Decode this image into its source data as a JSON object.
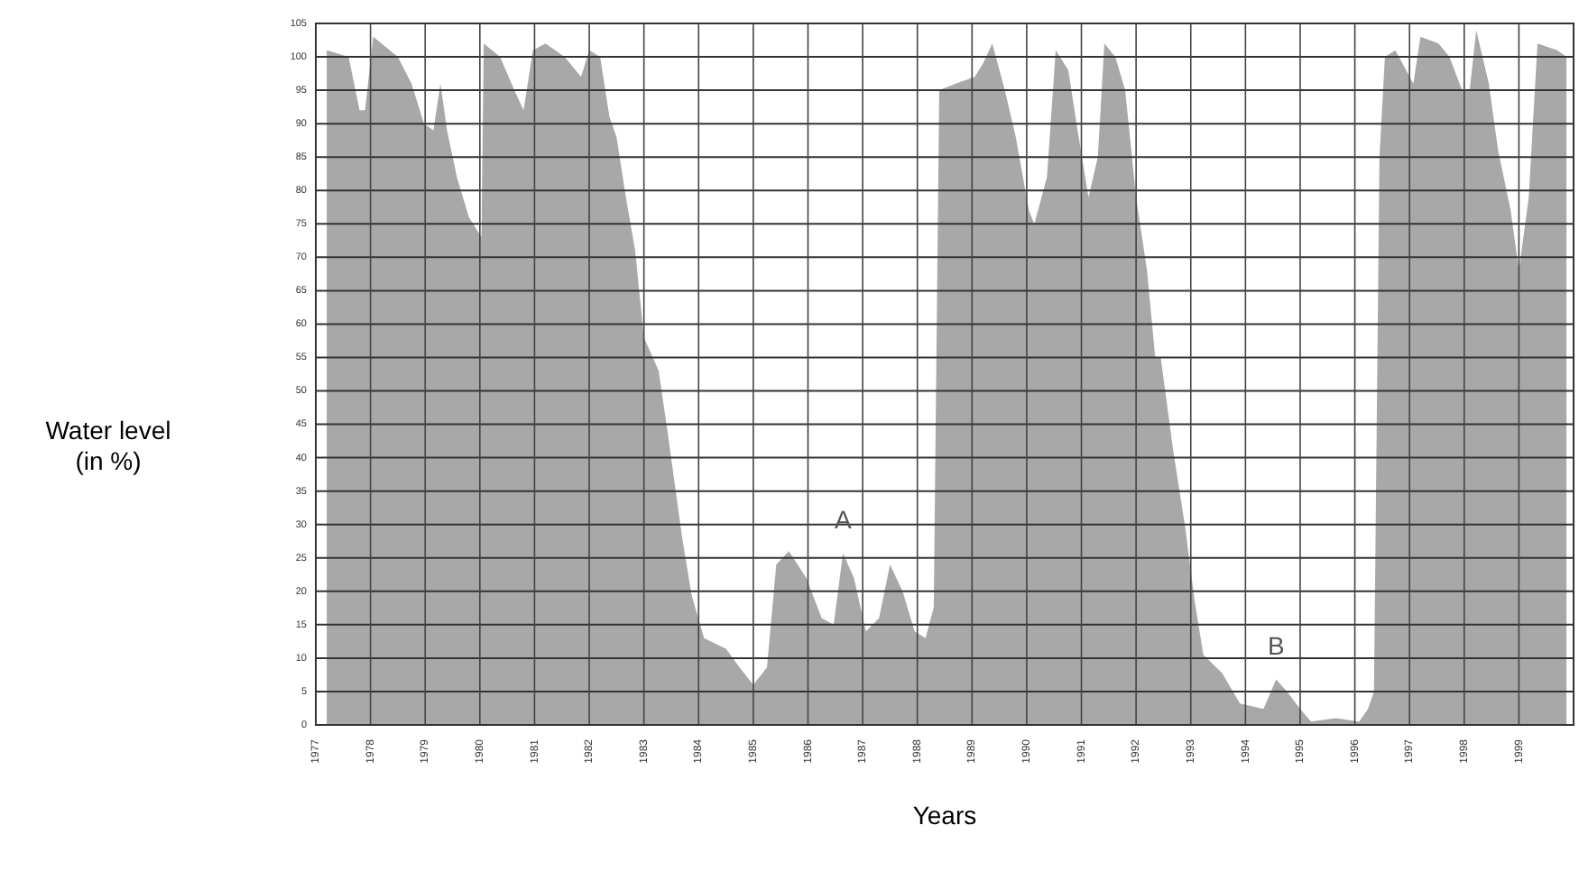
{
  "chart_data": {
    "type": "area",
    "xlabel": "Years",
    "ylabel": "Water level (in %)",
    "xlim": [
      1977,
      2000
    ],
    "xticks": [
      1977,
      1978,
      1979,
      1980,
      1981,
      1982,
      1983,
      1984,
      1985,
      1986,
      1987,
      1988,
      1989,
      1990,
      1991,
      1992,
      1993,
      1994,
      1995,
      1996,
      1997,
      1998,
      1999
    ],
    "ylim": [
      0,
      105
    ],
    "yticks": [
      0,
      5,
      10,
      15,
      20,
      25,
      30,
      35,
      40,
      45,
      50,
      55,
      60,
      65,
      70,
      75,
      80,
      85,
      90,
      95,
      100,
      105
    ],
    "grid": true,
    "series": [
      {
        "color": "#a8a8a8",
        "x": [
          1977.2,
          1977.6,
          1977.8,
          1977.9,
          1978.05,
          1978.5,
          1978.75,
          1978.98,
          1979.15,
          1979.28,
          1979.4,
          1979.58,
          1979.8,
          1980.03,
          1980.07,
          1980.37,
          1980.63,
          1980.8,
          1980.97,
          1981.2,
          1981.55,
          1981.85,
          1982.0,
          1982.2,
          1982.37,
          1982.5,
          1982.67,
          1982.84,
          1983.0,
          1983.27,
          1983.43,
          1983.7,
          1983.87,
          1984.1,
          1984.5,
          1984.75,
          1985.0,
          1985.25,
          1985.42,
          1985.65,
          1985.97,
          1986.25,
          1986.47,
          1986.64,
          1986.84,
          1987.06,
          1987.3,
          1987.5,
          1987.73,
          1987.95,
          1988.15,
          1988.3,
          1988.4,
          1988.7,
          1989.05,
          1989.2,
          1989.37,
          1989.6,
          1989.8,
          1990.04,
          1990.14,
          1990.37,
          1990.53,
          1990.76,
          1990.93,
          1991.13,
          1991.3,
          1991.42,
          1991.62,
          1991.8,
          1992.0,
          1992.2,
          1992.35,
          1992.45,
          1992.68,
          1992.9,
          1993.07,
          1993.23,
          1993.57,
          1993.9,
          1994.33,
          1994.56,
          1994.76,
          1995.0,
          1995.2,
          1995.65,
          1996.08,
          1996.24,
          1996.35,
          1996.45,
          1996.55,
          1996.74,
          1997.07,
          1997.2,
          1997.53,
          1997.73,
          1997.96,
          1998.1,
          1998.22,
          1998.45,
          1998.62,
          1998.85,
          1999.0,
          1999.18,
          1999.34,
          1999.7,
          1999.87
        ],
        "values": [
          101,
          100,
          92,
          92,
          103,
          100,
          96,
          90,
          89,
          96,
          89,
          82,
          76,
          73,
          102,
          100,
          95,
          92,
          101,
          102,
          100,
          97,
          101,
          100,
          91,
          88,
          79,
          71,
          58,
          53,
          44,
          28,
          19.5,
          13,
          11.4,
          8.6,
          6,
          8.6,
          24,
          26,
          22,
          16,
          15,
          25.7,
          22,
          14,
          16,
          24,
          20,
          14,
          13,
          17.6,
          95,
          96,
          97,
          99,
          102,
          95,
          88,
          77,
          75,
          82,
          101,
          98,
          89,
          79,
          85,
          102,
          100,
          95,
          79,
          68,
          55,
          55,
          41,
          29.5,
          18.6,
          10.5,
          7.8,
          3.2,
          2.4,
          6.8,
          5,
          2.4,
          0.5,
          1,
          0.5,
          2.4,
          5,
          85,
          100,
          101,
          96,
          103,
          102,
          100,
          95,
          95,
          104,
          96,
          86,
          77,
          68,
          79,
          102,
          101,
          100
        ]
      }
    ],
    "annotations": [
      {
        "text": "A",
        "x": 1986.64,
        "y": 25.7
      },
      {
        "text": "B",
        "x": 1994.56,
        "y": 6.8
      }
    ]
  }
}
